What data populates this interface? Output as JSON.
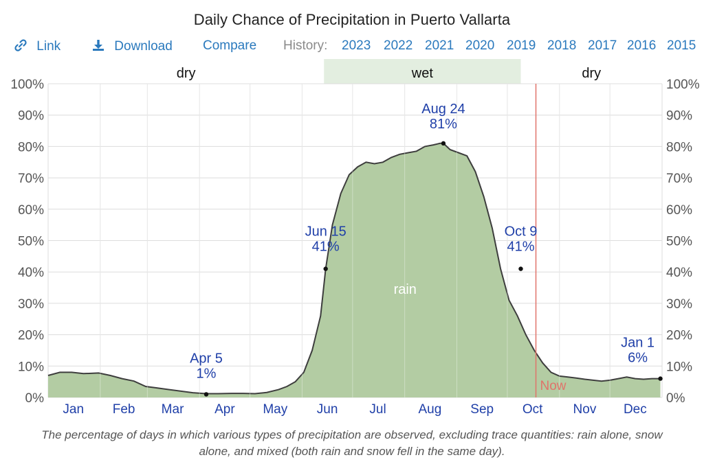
{
  "title": "Daily Chance of Precipitation in Puerto Vallarta",
  "toolbar": {
    "link_label": "Link",
    "download_label": "Download",
    "compare_label": "Compare",
    "history_label": "History:",
    "years": [
      "2023",
      "2022",
      "2021",
      "2020",
      "2019",
      "2018",
      "2017",
      "2016",
      "2015"
    ]
  },
  "colors": {
    "link": "#2a79bd",
    "rain_fill": "#b3cca3",
    "wet_band": "#e3eee0",
    "now_line": "#e0736a",
    "annotation": "#1f3fa8"
  },
  "chart_data": {
    "type": "area",
    "title": "Daily Chance of Precipitation in Puerto Vallarta",
    "xlabel": "",
    "ylabel": "",
    "ylim": [
      0,
      100
    ],
    "y_ticks": [
      "0%",
      "10%",
      "20%",
      "30%",
      "40%",
      "50%",
      "60%",
      "70%",
      "80%",
      "90%",
      "100%"
    ],
    "month_labels": [
      "Jan",
      "Feb",
      "Mar",
      "Apr",
      "May",
      "Jun",
      "Jul",
      "Aug",
      "Sep",
      "Oct",
      "Nov",
      "Dec"
    ],
    "grid": true,
    "seasons": [
      {
        "label": "dry",
        "type": "dry",
        "start_day": 1,
        "end_day": 165
      },
      {
        "label": "wet",
        "type": "wet",
        "start_day": 165,
        "end_day": 282
      },
      {
        "label": "dry",
        "type": "dry",
        "start_day": 282,
        "end_day": 366
      }
    ],
    "now_day": 291,
    "now_label": "Now",
    "series": [
      {
        "name": "rain",
        "x_day": [
          1,
          8,
          15,
          22,
          31,
          38,
          45,
          52,
          59,
          66,
          73,
          80,
          87,
          95,
          102,
          110,
          117,
          124,
          131,
          138,
          143,
          148,
          153,
          158,
          163,
          166,
          170,
          175,
          180,
          185,
          190,
          195,
          200,
          205,
          210,
          215,
          220,
          225,
          230,
          234,
          236,
          240,
          245,
          250,
          255,
          260,
          265,
          270,
          275,
          280,
          285,
          290,
          295,
          300,
          305,
          310,
          315,
          320,
          325,
          330,
          335,
          340,
          345,
          350,
          355,
          360,
          365
        ],
        "values": [
          7,
          8,
          8,
          7.6,
          7.8,
          7,
          6,
          5.2,
          3.5,
          3,
          2.5,
          2,
          1.5,
          1.2,
          1.2,
          1.3,
          1.3,
          1.2,
          1.6,
          2.5,
          3.5,
          5,
          8,
          15,
          26,
          41,
          55,
          65,
          71,
          73.5,
          75,
          74.5,
          75,
          76.5,
          77.5,
          78,
          78.5,
          80,
          80.5,
          81,
          81,
          79,
          78,
          77,
          72,
          64,
          54,
          41,
          31,
          26,
          20,
          15,
          11,
          8,
          6.8,
          6.5,
          6.2,
          5.8,
          5.5,
          5.2,
          5.5,
          6,
          6.5,
          6,
          5.8,
          6,
          6
        ]
      }
    ],
    "series_label": "rain",
    "annotations": [
      {
        "day": 95,
        "value": 1,
        "date": "Apr 5",
        "pct": "1%"
      },
      {
        "day": 166,
        "value": 41,
        "date": "Jun 15",
        "pct": "41%"
      },
      {
        "day": 236,
        "value": 81,
        "date": "Aug 24",
        "pct": "81%"
      },
      {
        "day": 282,
        "value": 41,
        "date": "Oct 9",
        "pct": "41%"
      },
      {
        "day": 365,
        "value": 6,
        "date": "Jan 1",
        "pct": "6%"
      }
    ]
  },
  "caption": "The percentage of days in which various types of precipitation are observed, excluding trace quantities: rain alone, snow alone, and mixed (both rain and snow fell in the same day)."
}
